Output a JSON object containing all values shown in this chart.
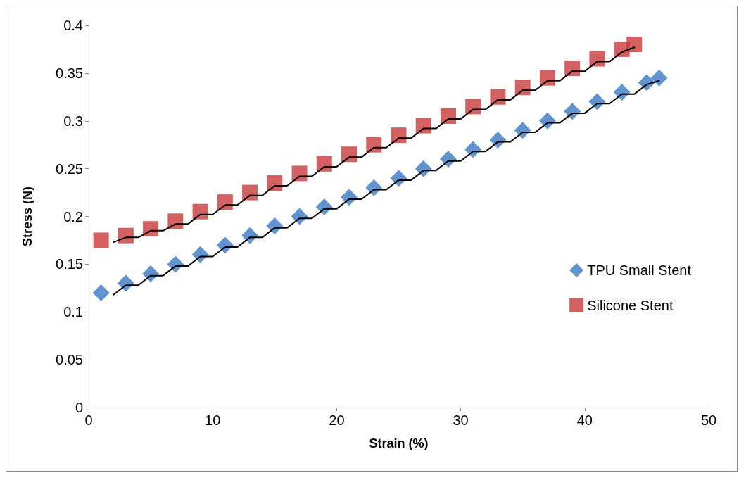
{
  "chart_data": {
    "type": "scatter",
    "xlabel": "Strain (%)",
    "ylabel": "Stress (N)",
    "xlim": [
      0,
      50
    ],
    "xticks": [
      0,
      10,
      20,
      30,
      40,
      50
    ],
    "ylim": [
      0,
      0.4
    ],
    "yticks": [
      0,
      0.05,
      0.1,
      0.15,
      0.2,
      0.25,
      0.3,
      0.35,
      0.4
    ],
    "grid": false,
    "legend": "right",
    "series": [
      {
        "name": "TPU Small Stent",
        "color": "#3a78c3",
        "marker": "diamond",
        "x": [
          1,
          3,
          5,
          7,
          9,
          11,
          13,
          15,
          17,
          19,
          21,
          23,
          25,
          27,
          29,
          31,
          33,
          35,
          37,
          39,
          41,
          43,
          45,
          46
        ],
        "values": [
          0.12,
          0.13,
          0.14,
          0.15,
          0.16,
          0.17,
          0.18,
          0.19,
          0.2,
          0.21,
          0.22,
          0.23,
          0.24,
          0.25,
          0.26,
          0.27,
          0.28,
          0.29,
          0.3,
          0.31,
          0.32,
          0.33,
          0.34,
          0.345
        ]
      },
      {
        "name": "Silicone Stent",
        "color": "#c83a3a",
        "marker": "square",
        "x": [
          1,
          3,
          5,
          7,
          9,
          11,
          13,
          15,
          17,
          19,
          21,
          23,
          25,
          27,
          29,
          31,
          33,
          35,
          37,
          39,
          41,
          43,
          44
        ],
        "values": [
          0.175,
          0.18,
          0.187,
          0.195,
          0.205,
          0.215,
          0.225,
          0.235,
          0.245,
          0.255,
          0.265,
          0.275,
          0.285,
          0.295,
          0.305,
          0.315,
          0.325,
          0.335,
          0.345,
          0.355,
          0.365,
          0.375,
          0.38
        ]
      },
      {
        "type": "line",
        "color": "#000000",
        "marker": "none",
        "x": [
          2,
          3,
          4,
          5,
          6,
          7,
          8,
          9,
          10,
          11,
          12,
          13,
          14,
          15,
          16,
          17,
          18,
          19,
          20,
          21,
          22,
          23,
          24,
          25,
          26,
          27,
          28,
          29,
          30,
          31,
          32,
          33,
          34,
          35,
          36,
          37,
          38,
          39,
          40,
          41,
          42,
          43,
          44,
          45,
          46
        ],
        "values": [
          0.118,
          0.128,
          0.128,
          0.138,
          0.138,
          0.148,
          0.148,
          0.158,
          0.158,
          0.168,
          0.168,
          0.178,
          0.178,
          0.188,
          0.188,
          0.198,
          0.198,
          0.208,
          0.208,
          0.218,
          0.218,
          0.228,
          0.228,
          0.238,
          0.238,
          0.248,
          0.248,
          0.258,
          0.258,
          0.268,
          0.268,
          0.278,
          0.278,
          0.288,
          0.288,
          0.298,
          0.298,
          0.308,
          0.308,
          0.318,
          0.318,
          0.328,
          0.328,
          0.338,
          0.342
        ]
      },
      {
        "type": "line",
        "color": "#000000",
        "marker": "none",
        "x": [
          2,
          3,
          4,
          5,
          6,
          7,
          8,
          9,
          10,
          11,
          12,
          13,
          14,
          15,
          16,
          17,
          18,
          19,
          20,
          21,
          22,
          23,
          24,
          25,
          26,
          27,
          28,
          29,
          30,
          31,
          32,
          33,
          34,
          35,
          36,
          37,
          38,
          39,
          40,
          41,
          42,
          43,
          44
        ],
        "values": [
          0.173,
          0.178,
          0.178,
          0.185,
          0.185,
          0.192,
          0.192,
          0.202,
          0.202,
          0.212,
          0.212,
          0.222,
          0.222,
          0.232,
          0.232,
          0.242,
          0.242,
          0.252,
          0.252,
          0.262,
          0.262,
          0.272,
          0.272,
          0.282,
          0.282,
          0.292,
          0.292,
          0.302,
          0.302,
          0.312,
          0.312,
          0.322,
          0.322,
          0.332,
          0.332,
          0.342,
          0.342,
          0.352,
          0.352,
          0.362,
          0.362,
          0.372,
          0.377
        ]
      }
    ]
  }
}
